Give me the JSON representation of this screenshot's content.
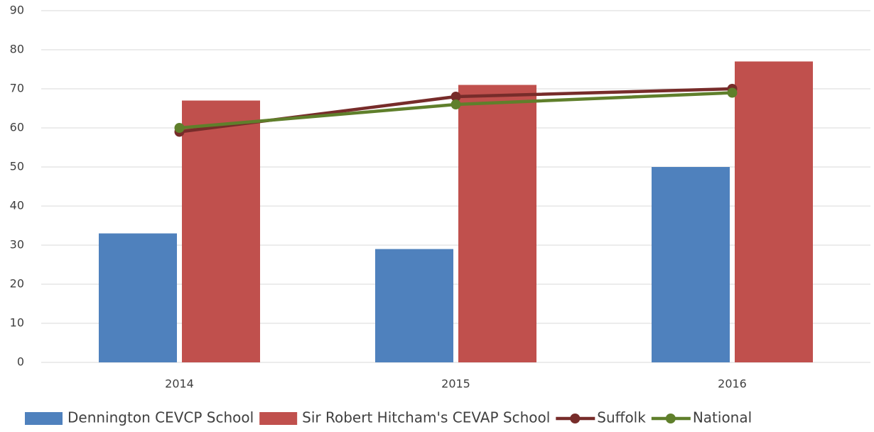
{
  "chart_data": {
    "type": "bar",
    "categories": [
      "2014",
      "2015",
      "2016"
    ],
    "series": [
      {
        "name": "Dennington CEVCP School",
        "type": "bar",
        "color": "#4f81bd",
        "values": [
          33,
          29,
          50
        ]
      },
      {
        "name": "Sir Robert Hitcham's CEVAP School",
        "type": "bar",
        "color": "#c0504d",
        "values": [
          67,
          71,
          77
        ]
      },
      {
        "name": "Suffolk",
        "type": "line",
        "color": "#772c2a",
        "values": [
          59,
          68,
          70
        ]
      },
      {
        "name": "National",
        "type": "line",
        "color": "#5f7f2b",
        "values": [
          60,
          66,
          69
        ]
      }
    ],
    "ylim": [
      0,
      90
    ],
    "yticks": [
      0,
      10,
      20,
      30,
      40,
      50,
      60,
      70,
      80,
      90
    ],
    "grid": true,
    "legend": "bottom"
  }
}
